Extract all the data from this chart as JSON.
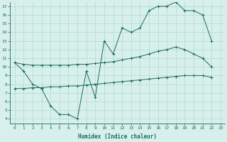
{
  "line1_x": [
    0,
    1,
    2,
    3,
    4,
    5,
    6,
    7,
    8,
    9,
    10,
    11,
    12,
    13,
    14,
    15,
    16,
    17,
    18,
    19,
    20,
    21,
    22
  ],
  "line1_y": [
    10.5,
    9.5,
    8.0,
    7.5,
    5.5,
    4.5,
    4.5,
    4.0,
    9.5,
    6.5,
    13.0,
    11.5,
    14.5,
    14.0,
    14.5,
    16.5,
    17.0,
    17.0,
    17.5,
    16.5,
    16.5,
    16.0,
    13.0
  ],
  "line2_x": [
    0,
    1,
    2,
    3,
    4,
    5,
    6,
    7,
    8,
    9,
    10,
    11,
    12,
    13,
    14,
    15,
    16,
    17,
    18,
    19,
    20,
    21,
    22
  ],
  "line2_y": [
    10.5,
    10.3,
    10.2,
    10.2,
    10.2,
    10.2,
    10.2,
    10.3,
    10.3,
    10.4,
    10.5,
    10.6,
    10.8,
    11.0,
    11.2,
    11.5,
    11.8,
    12.0,
    12.3,
    12.0,
    11.5,
    11.0,
    10.0
  ],
  "line3_x": [
    0,
    1,
    2,
    3,
    4,
    5,
    6,
    7,
    8,
    9,
    10,
    11,
    12,
    13,
    14,
    15,
    16,
    17,
    18,
    19,
    20,
    21,
    22
  ],
  "line3_y": [
    7.5,
    7.5,
    7.6,
    7.6,
    7.7,
    7.7,
    7.8,
    7.8,
    7.9,
    8.0,
    8.1,
    8.2,
    8.3,
    8.4,
    8.5,
    8.6,
    8.7,
    8.8,
    8.9,
    9.0,
    9.0,
    9.0,
    8.8
  ],
  "line_color": "#1a6b5a",
  "bg_color": "#d8f0ec",
  "grid_color": "#b0d8d0",
  "xlabel": "Humidex (Indice chaleur)",
  "xlim": [
    -0.5,
    23.5
  ],
  "ylim": [
    3.5,
    17.5
  ],
  "xticks": [
    0,
    1,
    2,
    3,
    4,
    5,
    6,
    7,
    8,
    9,
    10,
    11,
    12,
    13,
    14,
    15,
    16,
    17,
    18,
    19,
    20,
    21,
    22,
    23
  ],
  "yticks": [
    4,
    5,
    6,
    7,
    8,
    9,
    10,
    11,
    12,
    13,
    14,
    15,
    16,
    17
  ]
}
